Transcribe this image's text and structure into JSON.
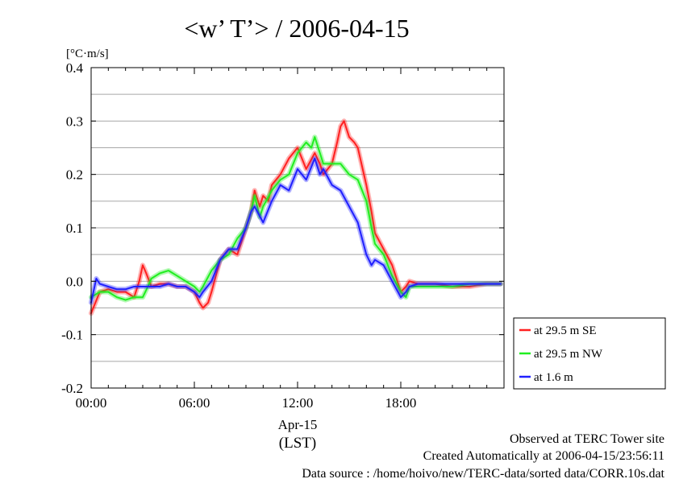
{
  "chart_data": {
    "type": "line",
    "title": "<w’ T’> / 2006-04-15",
    "ylabel": "[°C·m/s]",
    "ylim": [
      -0.2,
      0.4
    ],
    "yticks": [
      -0.2,
      -0.1,
      0.0,
      0.1,
      0.2,
      0.3,
      0.4
    ],
    "ytick_labels": [
      "-0.2",
      "-0.1",
      "0.0",
      "0.1",
      "0.2",
      "0.3",
      "0.4"
    ],
    "xlim": [
      0,
      24
    ],
    "xticks": [
      0,
      6,
      12,
      18
    ],
    "xtick_labels": [
      "00:00",
      "06:00",
      "12:00",
      "18:00"
    ],
    "xdate_label": "Apr-15",
    "xunit_label": "(LST)",
    "grid": true,
    "legend_position": "right",
    "series": [
      {
        "name": "at 29.5 m SE",
        "color": "#ff2020",
        "x": [
          0.0,
          0.5,
          1.0,
          1.5,
          2.0,
          2.5,
          2.8,
          3.0,
          3.2,
          3.5,
          4.0,
          4.5,
          5.0,
          5.5,
          6.0,
          6.3,
          6.5,
          6.8,
          7.0,
          7.5,
          8.0,
          8.5,
          9.0,
          9.3,
          9.5,
          9.8,
          10.0,
          10.3,
          10.5,
          11.0,
          11.5,
          12.0,
          12.5,
          13.0,
          13.3,
          13.5,
          14.0,
          14.3,
          14.5,
          14.7,
          15.0,
          15.3,
          15.5,
          16.0,
          16.3,
          16.5,
          17.0,
          17.5,
          18.0,
          18.3,
          18.5,
          19.0,
          19.5,
          20.0,
          21.0,
          22.0,
          23.0,
          23.8
        ],
        "values": [
          -0.06,
          -0.02,
          -0.015,
          -0.02,
          -0.02,
          -0.03,
          0.0,
          0.03,
          0.015,
          -0.01,
          -0.005,
          -0.005,
          -0.01,
          -0.01,
          -0.02,
          -0.04,
          -0.05,
          -0.04,
          -0.02,
          0.04,
          0.06,
          0.05,
          0.1,
          0.13,
          0.17,
          0.14,
          0.16,
          0.15,
          0.18,
          0.2,
          0.23,
          0.25,
          0.21,
          0.24,
          0.22,
          0.2,
          0.22,
          0.26,
          0.29,
          0.3,
          0.27,
          0.26,
          0.25,
          0.18,
          0.13,
          0.09,
          0.06,
          0.03,
          -0.02,
          -0.01,
          0.0,
          -0.005,
          -0.005,
          -0.005,
          -0.01,
          -0.01,
          -0.005,
          -0.005
        ]
      },
      {
        "name": "at 29.5 m NW",
        "color": "#20ee20",
        "x": [
          0.0,
          0.5,
          1.0,
          1.5,
          2.0,
          2.5,
          3.0,
          3.3,
          3.5,
          4.0,
          4.5,
          5.0,
          5.5,
          6.0,
          6.3,
          6.5,
          7.0,
          7.5,
          8.0,
          8.5,
          9.0,
          9.3,
          9.5,
          9.8,
          10.0,
          10.5,
          11.0,
          11.5,
          12.0,
          12.5,
          12.8,
          13.0,
          13.3,
          13.5,
          14.0,
          14.5,
          15.0,
          15.5,
          16.0,
          16.3,
          16.5,
          17.0,
          17.5,
          18.0,
          18.3,
          18.5,
          19.0,
          20.0,
          21.0,
          22.0,
          23.0,
          23.8
        ],
        "values": [
          -0.03,
          -0.02,
          -0.02,
          -0.03,
          -0.035,
          -0.03,
          -0.03,
          -0.01,
          0.005,
          0.015,
          0.02,
          0.01,
          0.0,
          -0.01,
          -0.02,
          -0.01,
          0.02,
          0.04,
          0.05,
          0.08,
          0.1,
          0.13,
          0.16,
          0.12,
          0.14,
          0.17,
          0.19,
          0.2,
          0.24,
          0.26,
          0.25,
          0.27,
          0.24,
          0.22,
          0.22,
          0.22,
          0.2,
          0.19,
          0.15,
          0.1,
          0.07,
          0.05,
          0.01,
          -0.02,
          -0.03,
          -0.01,
          -0.01,
          -0.01,
          -0.01,
          -0.005,
          -0.005,
          -0.005
        ]
      },
      {
        "name": "at 1.6 m",
        "color": "#2020ff",
        "x": [
          0.0,
          0.3,
          0.5,
          1.0,
          1.5,
          2.0,
          2.5,
          3.0,
          3.5,
          4.0,
          4.5,
          5.0,
          5.5,
          6.0,
          6.3,
          6.5,
          7.0,
          7.5,
          8.0,
          8.5,
          9.0,
          9.3,
          9.5,
          10.0,
          10.5,
          11.0,
          11.5,
          12.0,
          12.5,
          13.0,
          13.3,
          13.5,
          14.0,
          14.5,
          15.0,
          15.5,
          16.0,
          16.3,
          16.5,
          17.0,
          17.5,
          18.0,
          18.3,
          18.5,
          19.0,
          20.0,
          21.0,
          22.0,
          23.0,
          23.8
        ],
        "values": [
          -0.04,
          0.005,
          -0.005,
          -0.01,
          -0.015,
          -0.015,
          -0.01,
          -0.01,
          -0.01,
          -0.01,
          -0.005,
          -0.01,
          -0.01,
          -0.02,
          -0.03,
          -0.02,
          0.0,
          0.04,
          0.06,
          0.06,
          0.1,
          0.13,
          0.14,
          0.11,
          0.15,
          0.18,
          0.17,
          0.21,
          0.19,
          0.23,
          0.2,
          0.21,
          0.18,
          0.17,
          0.14,
          0.11,
          0.05,
          0.03,
          0.04,
          0.03,
          0.0,
          -0.03,
          -0.02,
          -0.01,
          -0.005,
          -0.005,
          -0.005,
          -0.005,
          -0.005,
          -0.005
        ]
      }
    ]
  },
  "footer": {
    "observed": "Observed at TERC Tower site",
    "created": "Created Automatically at 2006-04-15/23:56:11",
    "source": "Data source : /home/hoivo/new/TERC-data/sorted  data/CORR.10s.dat"
  }
}
